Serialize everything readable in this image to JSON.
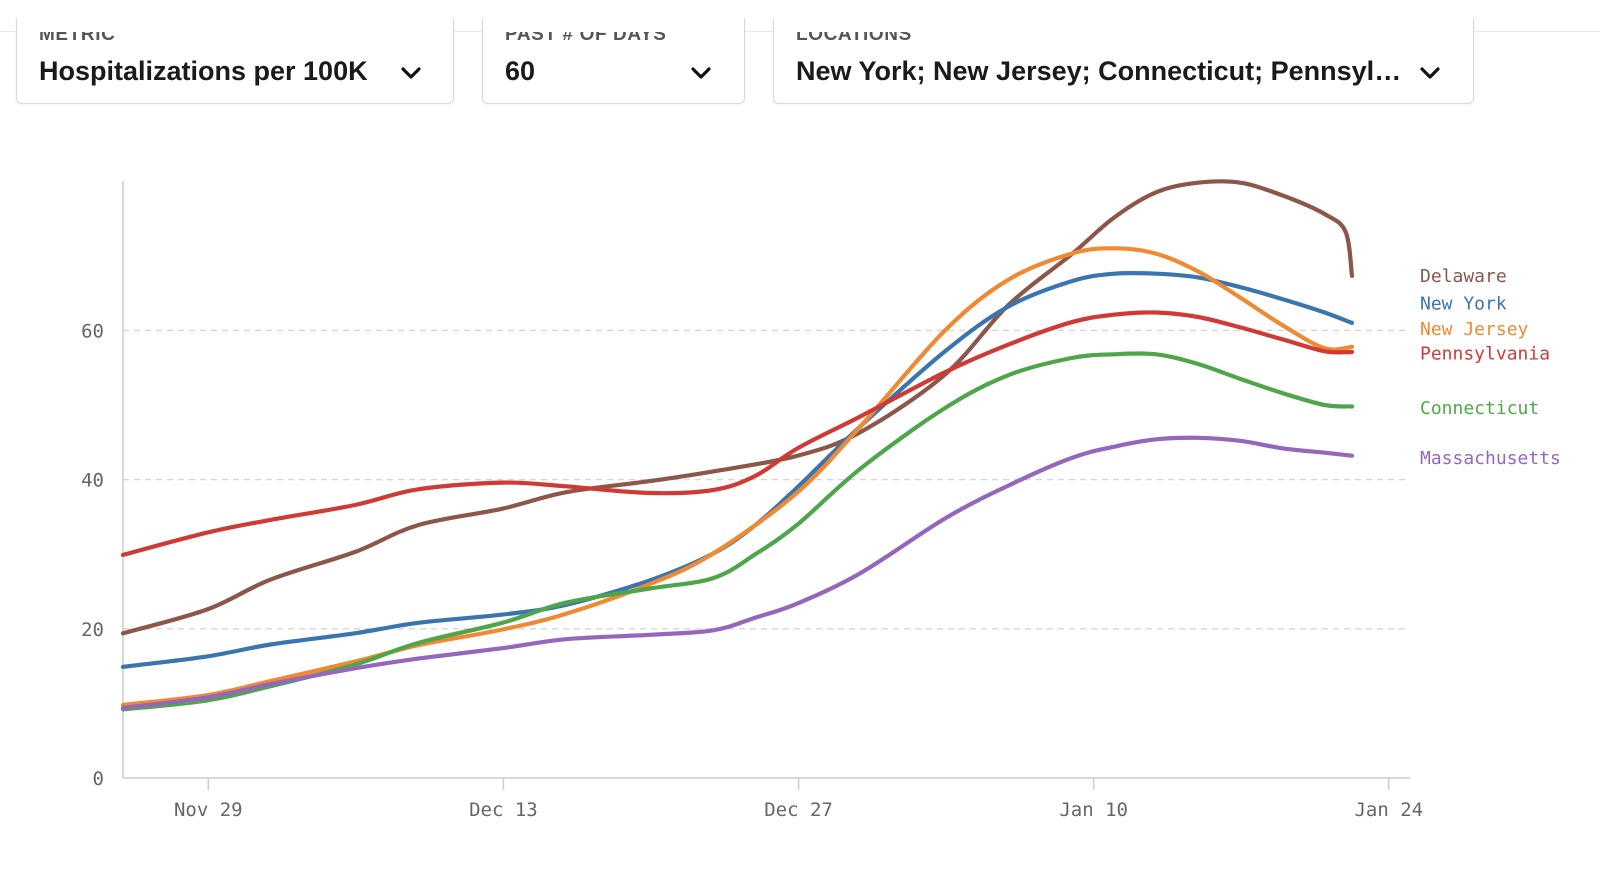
{
  "controls": {
    "metric": {
      "label": "METRIC",
      "value": "Hospitalizations per 100K"
    },
    "days": {
      "label": "PAST # OF DAYS",
      "value": "60"
    },
    "locations": {
      "label": "LOCATIONS",
      "value": "New York; New Jersey; Connecticut; Pennsylva..."
    }
  },
  "chart_data": {
    "type": "line",
    "title": "",
    "xlabel": "",
    "ylabel": "",
    "x_start": "2021-11-24",
    "x_days": [
      0,
      7,
      14,
      21,
      28,
      35,
      42,
      49,
      56,
      63,
      67,
      71,
      74,
      77,
      80,
      83
    ],
    "xlim_days": [
      0,
      84
    ],
    "x_ticks": [
      {
        "day": 4,
        "label": "Nov 29"
      },
      {
        "day": 18,
        "label": "Dec 13"
      },
      {
        "day": 32,
        "label": "Dec 27"
      },
      {
        "day": 46,
        "label": "Jan 10"
      },
      {
        "day": 60,
        "label": "Jan 24"
      }
    ],
    "ylim": [
      0,
      80
    ],
    "y_ticks": [
      0,
      20,
      40,
      60
    ],
    "gridlines": [
      20,
      40,
      60
    ],
    "series": [
      {
        "name": "Delaware",
        "color": "#8c564b",
        "days": [
          0,
          4,
          7,
          11,
          14,
          18,
          21,
          25,
          28,
          32,
          35,
          39,
          42,
          45,
          47,
          49,
          51,
          53,
          55,
          57,
          58,
          58.3
        ],
        "values": [
          19.4,
          22.6,
          26.6,
          30.3,
          33.9,
          36.1,
          38.3,
          39.8,
          41.1,
          43.2,
          46.4,
          54.1,
          63.4,
          70.2,
          75.1,
          78.5,
          79.8,
          79.8,
          78.1,
          75.6,
          73.2,
          67.3
        ]
      },
      {
        "name": "New York",
        "color": "#3a75b0",
        "days": [
          0,
          4,
          7,
          11,
          14,
          18,
          21,
          25,
          28,
          30,
          32,
          35,
          39,
          42,
          45,
          47,
          49,
          51,
          53,
          55,
          57,
          58.3
        ],
        "values": [
          14.9,
          16.3,
          17.9,
          19.4,
          20.8,
          21.9,
          23.2,
          26.5,
          30.1,
          33.9,
          39.0,
          47.2,
          57.2,
          63.2,
          66.6,
          67.6,
          67.6,
          67.1,
          65.8,
          64.2,
          62.4,
          61.0
        ]
      },
      {
        "name": "New Jersey",
        "color": "#ef8a33",
        "days": [
          0,
          4,
          7,
          11,
          14,
          18,
          21,
          25,
          28,
          32,
          35,
          39,
          42,
          45,
          47,
          49,
          51,
          53,
          55,
          57,
          58.3
        ],
        "values": [
          9.8,
          11.1,
          13.0,
          15.6,
          17.8,
          19.9,
          22.0,
          26.0,
          30.1,
          38.3,
          47.2,
          60.0,
          66.8,
          70.3,
          71.0,
          70.3,
          67.9,
          64.4,
          60.7,
          57.6,
          57.8
        ]
      },
      {
        "name": "Pennsylvania",
        "color": "#d03a34",
        "days": [
          0,
          4,
          7,
          11,
          14,
          18,
          21,
          25,
          28,
          30,
          32,
          35,
          39,
          42,
          45,
          47,
          49,
          51,
          53,
          55,
          57,
          58.3
        ],
        "values": [
          29.9,
          32.9,
          34.6,
          36.6,
          38.7,
          39.6,
          39.1,
          38.2,
          38.6,
          40.5,
          44.2,
          48.5,
          54.4,
          58.1,
          61.1,
          62.1,
          62.4,
          61.8,
          60.4,
          58.8,
          57.2,
          57.1
        ]
      },
      {
        "name": "Connecticut",
        "color": "#4fa64a",
        "days": [
          0,
          4,
          7,
          11,
          14,
          18,
          21,
          25,
          28,
          30,
          32,
          35,
          39,
          42,
          45,
          47,
          49,
          51,
          53,
          55,
          57,
          58.3
        ],
        "values": [
          9.2,
          10.4,
          12.3,
          15.2,
          18.1,
          20.8,
          23.5,
          25.4,
          26.8,
          30.0,
          34.0,
          41.5,
          49.6,
          54.0,
          56.3,
          56.8,
          56.8,
          55.5,
          53.5,
          51.6,
          50.0,
          49.8
        ]
      },
      {
        "name": "Massachusetts",
        "color": "#9467bd",
        "days": [
          0,
          4,
          7,
          11,
          14,
          18,
          21,
          25,
          28,
          30,
          32,
          35,
          39,
          42,
          45,
          47,
          49,
          51,
          53,
          55,
          57,
          58.3
        ],
        "values": [
          9.4,
          10.8,
          12.6,
          14.7,
          16.0,
          17.4,
          18.6,
          19.2,
          19.8,
          21.5,
          23.4,
          27.5,
          34.8,
          39.2,
          42.9,
          44.4,
          45.4,
          45.6,
          45.2,
          44.2,
          43.6,
          43.2
        ]
      }
    ],
    "legend": [
      {
        "name": "Delaware",
        "at_value": 67.3
      },
      {
        "name": "New York",
        "at_value": 63.6
      },
      {
        "name": "New Jersey",
        "at_value": 60.2
      },
      {
        "name": "Pennsylvania",
        "at_value": 56.9
      },
      {
        "name": "Connecticut",
        "at_value": 49.6
      },
      {
        "name": "Massachusetts",
        "at_value": 42.9
      }
    ]
  }
}
